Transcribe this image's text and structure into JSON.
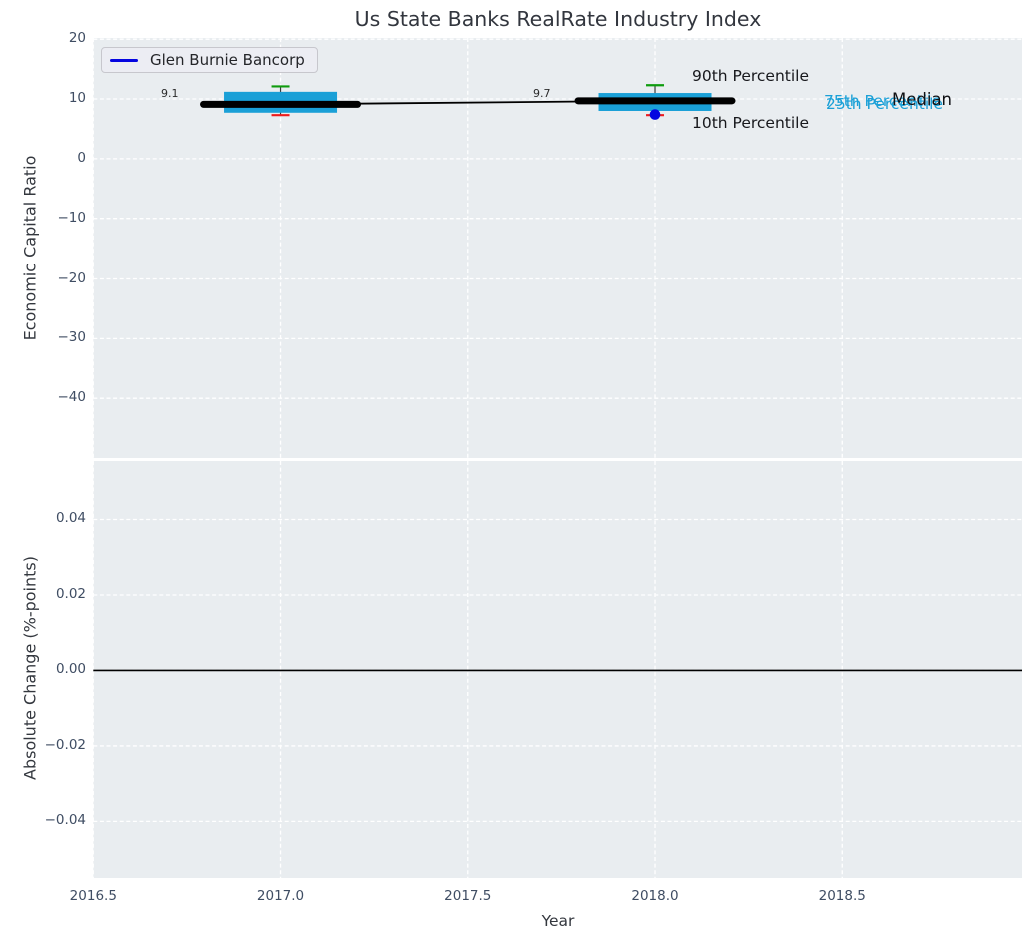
{
  "colors": {
    "plot_bg": "#e9edf0",
    "grid": "#ffffff",
    "box_fill": "#1aa0d7",
    "percentile_90_cap": "#0e9c0e",
    "percentile_10_cap": "#ed1c1c",
    "median_line": "#000000",
    "trend_line": "#000000",
    "whisker_line": "#3a3a3a",
    "company_marker": "#0505e0",
    "zero_line": "#000000",
    "tick_label": "#3f4d63"
  },
  "chart_data": [
    {
      "type": "box",
      "title": "Us State Banks RealRate Industry Index",
      "ylabel": "Economic Capital Ratio",
      "x": [
        2017,
        2018
      ],
      "series": {
        "median": [
          9.1,
          9.7
        ],
        "p75": [
          11.2,
          11.0
        ],
        "p25": [
          7.7,
          8.0
        ],
        "p90": [
          12.1,
          12.3
        ],
        "p10": [
          7.3,
          7.3
        ],
        "company": {
          "name": "Glen Burnie Bancorp",
          "year": 2018,
          "value": 7.4
        }
      },
      "data_labels": [
        "9.1",
        "9.7"
      ],
      "legend": {
        "label": "Glen Burnie Bancorp"
      },
      "annotations": {
        "p90": "90th Percentile",
        "p10": "10th Percentile",
        "p75": "75th Percentile",
        "p25": "25th Percentile",
        "median": "Median"
      },
      "ylim": [
        -50.0,
        20.2
      ],
      "yticks": [
        20,
        10,
        0,
        -10,
        -20,
        -30,
        -40
      ],
      "xlim": [
        2016.5,
        2018.98
      ],
      "xticks": [
        2016.5,
        2017.0,
        2017.5,
        2018.0,
        2018.5
      ],
      "grid": true,
      "legend_position": "upper left"
    },
    {
      "type": "line",
      "ylabel": "Absolute Change (%-points)",
      "xlabel": "Year",
      "data": [],
      "zero_line": 0.0,
      "ylim": [
        -0.055,
        0.0555
      ],
      "yticks": [
        0.04,
        0.02,
        0.0,
        -0.02,
        -0.04
      ],
      "xlim": [
        2016.5,
        2018.98
      ],
      "xticks": [
        2016.5,
        2017.0,
        2017.5,
        2018.0,
        2018.5
      ],
      "grid": true
    }
  ]
}
